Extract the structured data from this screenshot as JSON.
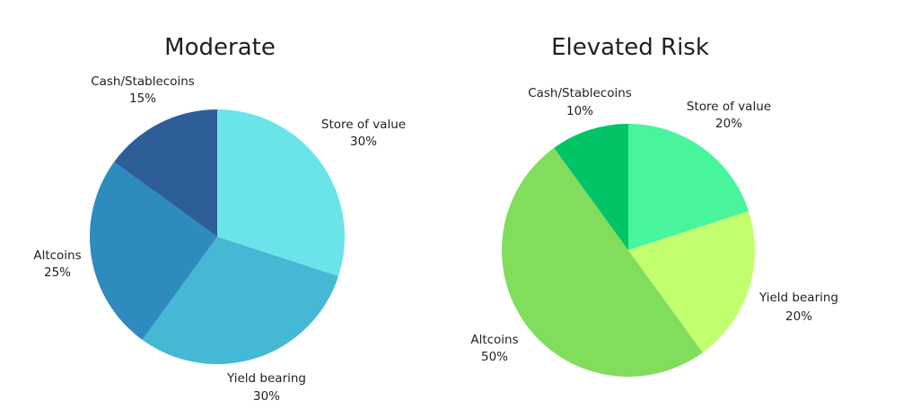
{
  "chart_data": [
    {
      "type": "pie",
      "title": "Moderate",
      "slices": [
        {
          "label": "Store of value",
          "value": 30,
          "value_label": "30%",
          "color": "#6AE4E8"
        },
        {
          "label": "Yield bearing",
          "value": 30,
          "value_label": "30%",
          "color": "#45B8D6"
        },
        {
          "label": "Altcoins",
          "value": 25,
          "value_label": "25%",
          "color": "#2E8BBE"
        },
        {
          "label": "Cash/Stablecoins",
          "value": 15,
          "value_label": "15%",
          "color": "#2E5E98"
        }
      ]
    },
    {
      "type": "pie",
      "title": "Elevated Risk",
      "slices": [
        {
          "label": "Store of value",
          "value": 20,
          "value_label": "20%",
          "color": "#49F59C"
        },
        {
          "label": "Yield bearing",
          "value": 20,
          "value_label": "20%",
          "color": "#C2FF6E"
        },
        {
          "label": "Altcoins",
          "value": 50,
          "value_label": "50%",
          "color": "#80DE5C"
        },
        {
          "label": "Cash/Stablecoins",
          "value": 10,
          "value_label": "10%",
          "color": "#00C466"
        }
      ]
    }
  ]
}
